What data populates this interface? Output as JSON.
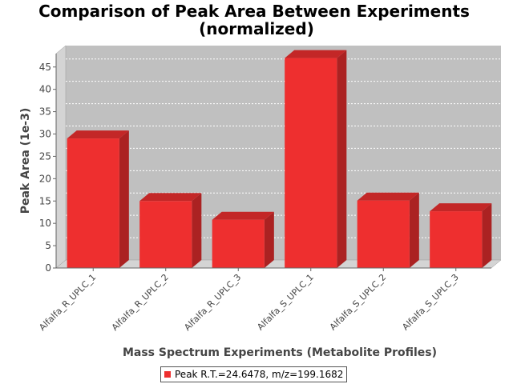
{
  "chart_data": {
    "type": "bar",
    "title": "Comparison of Peak Area Between Experiments",
    "subtitle": "(normalized)",
    "xlabel": "Mass Spectrum Experiments (Metabolite Profiles)",
    "ylabel": "Peak Area (1e-3)",
    "ylim": [
      0,
      48
    ],
    "yticks": [
      0,
      5,
      10,
      15,
      20,
      25,
      30,
      35,
      40,
      45
    ],
    "grid": true,
    "legend_position": "bottom",
    "categories": [
      "Alfalfa_R_UPLC_1",
      "Alfalfa_R_UPLC_2",
      "Alfalfa_R_UPLC_3",
      "Alfalfa_S_UPLC_1",
      "Alfalfa_S_UPLC_2",
      "Alfalfa_S_UPLC_3"
    ],
    "series": [
      {
        "name": "Peak R.T.=24.6478, m/z=199.1682",
        "color": "#ee2f2f",
        "values": [
          29,
          15,
          10.8,
          47,
          15.1,
          12.7
        ]
      }
    ]
  }
}
